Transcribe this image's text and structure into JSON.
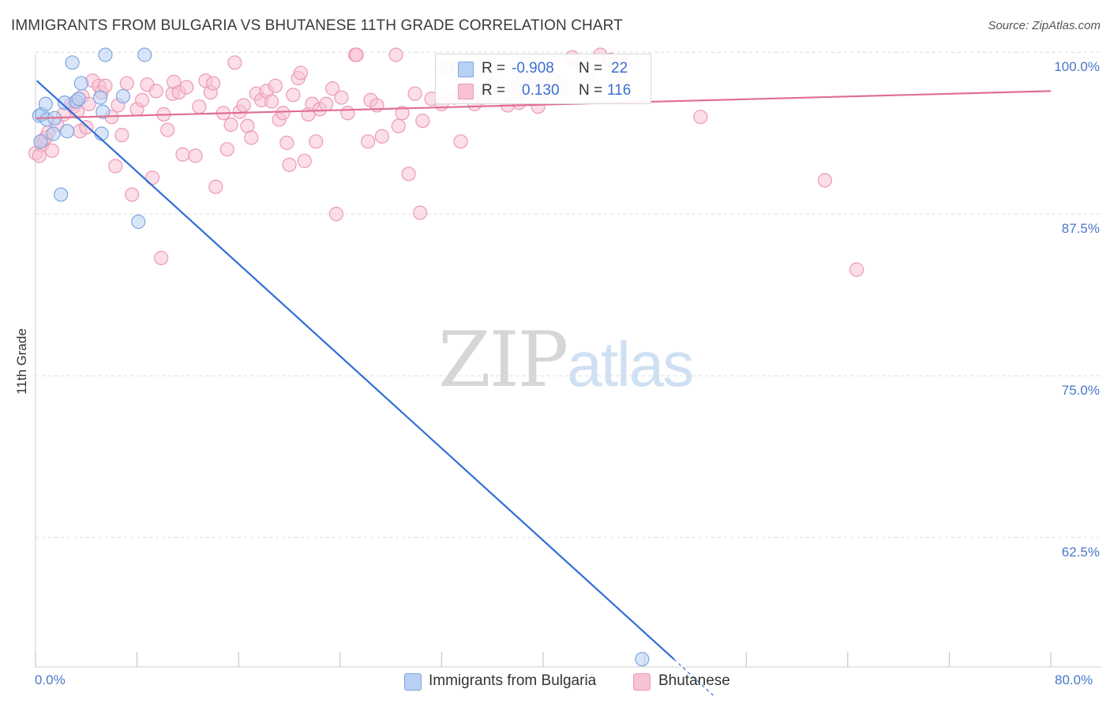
{
  "title": "IMMIGRANTS FROM BULGARIA VS BHUTANESE 11TH GRADE CORRELATION CHART",
  "source": "Source: ZipAtlas.com",
  "watermark": {
    "zip": "ZIP",
    "atlas": "atlas"
  },
  "legend": {
    "rows": [
      {
        "r_key": "R =",
        "r_value": "-0.908",
        "n_key": "N =",
        "n_value": "22",
        "color": "#7fa6e0"
      },
      {
        "r_key": "R =",
        "r_value": "0.130",
        "n_key": "N =",
        "n_value": "116",
        "color": "#ec9ab6"
      }
    ]
  },
  "bottom_legend": {
    "series1": "Immigrants from Bulgaria",
    "series2": "Bhutanese"
  },
  "chart_data": {
    "type": "scatter",
    "title": "IMMIGRANTS FROM BULGARIA VS BHUTANESE 11TH GRADE CORRELATION CHART",
    "xlabel": "",
    "ylabel": "11th Grade",
    "xlim": [
      0,
      80
    ],
    "ylim": [
      52.5,
      100.5
    ],
    "x_tick_labels": [
      "0.0%",
      "80.0%"
    ],
    "y_ticks": [
      {
        "value": 100,
        "label": "100.0%"
      },
      {
        "value": 87.5,
        "label": "87.5%"
      },
      {
        "value": 75,
        "label": "75.0%"
      },
      {
        "value": 62.5,
        "label": "62.5%"
      }
    ],
    "grid": true,
    "legend_position": "top-center",
    "series": [
      {
        "name": "Immigrants from Bulgaria",
        "color": "#7fa6e0",
        "fill": "#b8d0f4",
        "trend_color": "#2f6fd6",
        "trend": {
          "x0": 0.1,
          "y0": 97.8,
          "x1": 50.3,
          "y1": 53.1,
          "dash_to_x": 53.4,
          "dash_to_y": 50.3
        },
        "points": [
          [
            0.3,
            95.1
          ],
          [
            0.5,
            95.2
          ],
          [
            0.8,
            96.0
          ],
          [
            0.9,
            94.8
          ],
          [
            1.4,
            93.7
          ],
          [
            1.5,
            94.9
          ],
          [
            2.0,
            89.0
          ],
          [
            2.3,
            96.1
          ],
          [
            2.5,
            93.9
          ],
          [
            2.9,
            99.2
          ],
          [
            3.2,
            96.2
          ],
          [
            3.4,
            96.4
          ],
          [
            3.6,
            97.6
          ],
          [
            5.1,
            96.5
          ],
          [
            5.3,
            95.4
          ],
          [
            5.2,
            93.7
          ],
          [
            5.5,
            99.8
          ],
          [
            6.9,
            96.6
          ],
          [
            8.1,
            86.9
          ],
          [
            8.6,
            99.8
          ],
          [
            47.8,
            53.1
          ],
          [
            0.4,
            93.1
          ]
        ]
      },
      {
        "name": "Bhutanese",
        "color": "#ec9ab6",
        "fill": "#f7c3d4",
        "trend_color": "#e0708f",
        "trend": {
          "x0": 0,
          "y0": 94.9,
          "x1": 80,
          "y1": 97.0
        },
        "points": [
          [
            0.0,
            92.2
          ],
          [
            0.5,
            92.8
          ],
          [
            0.6,
            93.2
          ],
          [
            0.8,
            93.4
          ],
          [
            1.0,
            93.8
          ],
          [
            1.3,
            92.4
          ],
          [
            1.7,
            94.4
          ],
          [
            2.2,
            95.2
          ],
          [
            2.8,
            96.0
          ],
          [
            3.0,
            95.8
          ],
          [
            3.3,
            95.4
          ],
          [
            3.5,
            93.9
          ],
          [
            3.7,
            96.6
          ],
          [
            4.0,
            94.2
          ],
          [
            4.2,
            96.0
          ],
          [
            4.5,
            97.8
          ],
          [
            5.0,
            97.4
          ],
          [
            5.2,
            96.9
          ],
          [
            5.5,
            97.4
          ],
          [
            6.0,
            95.0
          ],
          [
            6.3,
            91.2
          ],
          [
            6.5,
            95.9
          ],
          [
            6.8,
            93.6
          ],
          [
            7.2,
            97.6
          ],
          [
            7.6,
            89.0
          ],
          [
            8.0,
            95.6
          ],
          [
            8.4,
            96.3
          ],
          [
            8.8,
            97.5
          ],
          [
            9.2,
            90.3
          ],
          [
            9.5,
            97.0
          ],
          [
            9.9,
            84.1
          ],
          [
            10.1,
            95.2
          ],
          [
            10.4,
            94.0
          ],
          [
            10.8,
            96.8
          ],
          [
            10.9,
            97.7
          ],
          [
            11.3,
            96.9
          ],
          [
            11.6,
            92.1
          ],
          [
            11.9,
            97.3
          ],
          [
            12.6,
            92.0
          ],
          [
            12.9,
            95.8
          ],
          [
            13.4,
            97.8
          ],
          [
            13.8,
            96.9
          ],
          [
            14.0,
            97.6
          ],
          [
            14.2,
            89.6
          ],
          [
            14.8,
            95.3
          ],
          [
            15.1,
            92.5
          ],
          [
            15.4,
            94.4
          ],
          [
            15.7,
            99.2
          ],
          [
            16.1,
            95.4
          ],
          [
            16.4,
            95.9
          ],
          [
            16.7,
            94.3
          ],
          [
            17.0,
            93.4
          ],
          [
            17.4,
            96.8
          ],
          [
            17.8,
            96.3
          ],
          [
            18.2,
            97.0
          ],
          [
            18.6,
            96.2
          ],
          [
            18.9,
            97.4
          ],
          [
            19.2,
            94.8
          ],
          [
            19.5,
            95.3
          ],
          [
            19.8,
            93.0
          ],
          [
            20.0,
            91.3
          ],
          [
            20.3,
            96.7
          ],
          [
            20.7,
            98.0
          ],
          [
            20.9,
            98.4
          ],
          [
            21.2,
            91.6
          ],
          [
            21.5,
            95.2
          ],
          [
            21.8,
            96.0
          ],
          [
            22.1,
            93.1
          ],
          [
            22.4,
            95.6
          ],
          [
            22.9,
            96.0
          ],
          [
            23.4,
            97.2
          ],
          [
            23.7,
            87.5
          ],
          [
            24.1,
            96.5
          ],
          [
            24.6,
            95.3
          ],
          [
            25.2,
            99.8
          ],
          [
            25.3,
            99.8
          ],
          [
            26.2,
            93.1
          ],
          [
            26.4,
            96.3
          ],
          [
            26.9,
            95.9
          ],
          [
            27.3,
            93.5
          ],
          [
            28.4,
            99.8
          ],
          [
            28.6,
            94.3
          ],
          [
            28.9,
            95.3
          ],
          [
            29.4,
            90.6
          ],
          [
            29.9,
            96.8
          ],
          [
            30.3,
            87.6
          ],
          [
            30.5,
            94.7
          ],
          [
            31.2,
            96.4
          ],
          [
            32.0,
            96.0
          ],
          [
            32.4,
            98.8
          ],
          [
            33.0,
            96.5
          ],
          [
            33.5,
            93.1
          ],
          [
            33.8,
            96.6
          ],
          [
            34.6,
            96.0
          ],
          [
            35.3,
            96.5
          ],
          [
            36.0,
            97.4
          ],
          [
            37.2,
            95.9
          ],
          [
            37.8,
            97.2
          ],
          [
            38.1,
            96.1
          ],
          [
            38.5,
            98.0
          ],
          [
            39.2,
            97.2
          ],
          [
            39.6,
            95.8
          ],
          [
            40.0,
            96.7
          ],
          [
            40.8,
            97.9
          ],
          [
            41.5,
            97.2
          ],
          [
            42.3,
            99.6
          ],
          [
            43.0,
            99.2
          ],
          [
            43.8,
            97.8
          ],
          [
            44.5,
            99.8
          ],
          [
            45.3,
            99.4
          ],
          [
            46.0,
            98.6
          ],
          [
            46.5,
            99.0
          ],
          [
            52.4,
            95.0
          ],
          [
            62.2,
            90.1
          ],
          [
            64.7,
            83.2
          ],
          [
            0.3,
            92.0
          ]
        ]
      }
    ]
  }
}
